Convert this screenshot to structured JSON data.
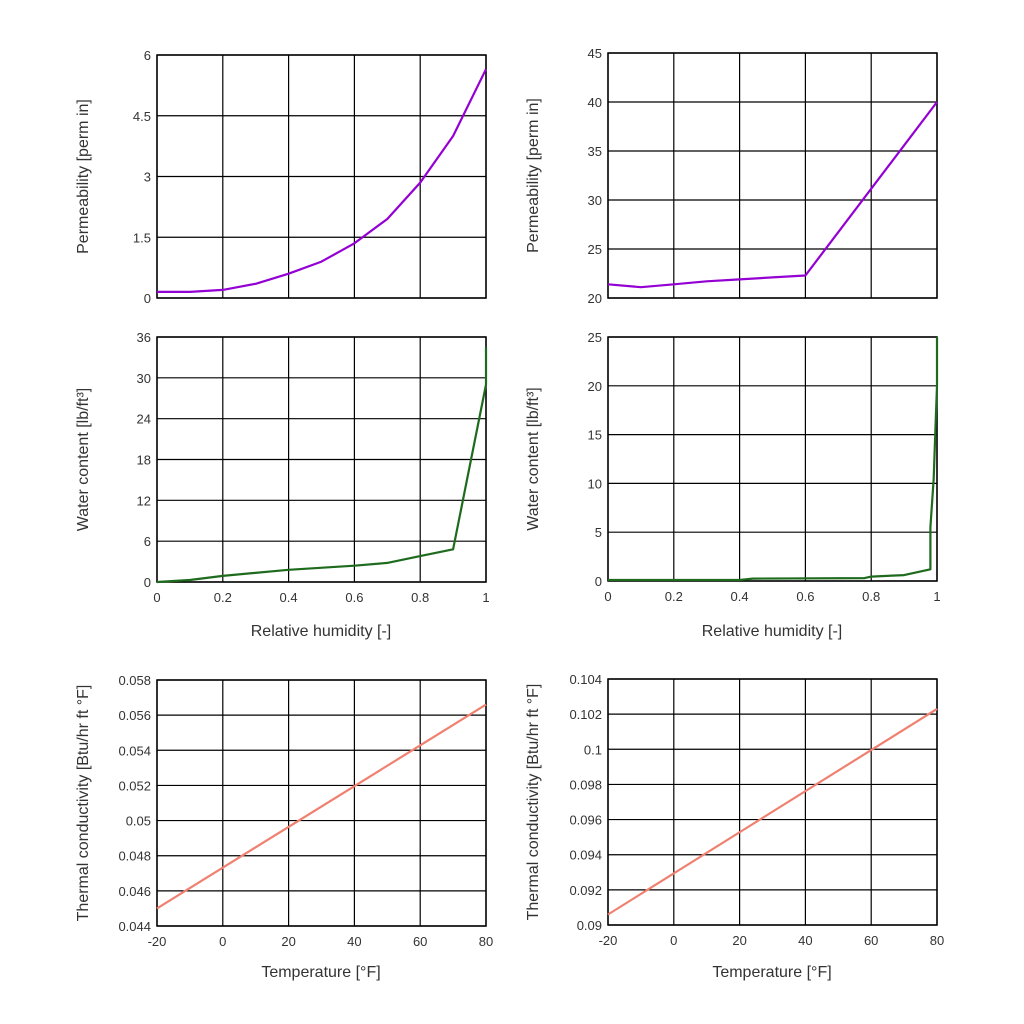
{
  "chart_data": [
    {
      "type": "line",
      "ylabel": "Permeability [perm in]",
      "xlabel": "",
      "xlim": [
        0,
        1
      ],
      "ylim": [
        0,
        6
      ],
      "xticks": [
        0,
        0.2,
        0.4,
        0.6,
        0.8,
        1
      ],
      "show_xtick_labels": false,
      "yticks": [
        0,
        1.5,
        3,
        4.5,
        6
      ],
      "grid": true,
      "color": "#9400D3",
      "x": [
        0,
        0.1,
        0.2,
        0.3,
        0.4,
        0.5,
        0.6,
        0.7,
        0.8,
        0.9,
        1.0
      ],
      "y": [
        0.15,
        0.15,
        0.2,
        0.35,
        0.6,
        0.9,
        1.35,
        1.95,
        2.85,
        4.0,
        5.65
      ]
    },
    {
      "type": "line",
      "ylabel": "Permeability [perm in]",
      "xlabel": "",
      "xlim": [
        0,
        1
      ],
      "ylim": [
        20,
        45
      ],
      "xticks": [
        0,
        0.2,
        0.4,
        0.6,
        0.8,
        1
      ],
      "show_xtick_labels": false,
      "yticks": [
        20,
        25,
        30,
        35,
        40,
        45
      ],
      "grid": true,
      "color": "#9400D3",
      "x": [
        0,
        0.1,
        0.2,
        0.3,
        0.4,
        0.5,
        0.6,
        1.0
      ],
      "y": [
        21.4,
        21.1,
        21.4,
        21.7,
        21.9,
        22.1,
        22.3,
        40
      ]
    },
    {
      "type": "line",
      "ylabel": "Water content [lb/ft³]",
      "xlabel": "Relative humidity [-]",
      "xlim": [
        0,
        1
      ],
      "ylim": [
        0,
        36
      ],
      "xticks": [
        0,
        0.2,
        0.4,
        0.6,
        0.8,
        1
      ],
      "show_xtick_labels": true,
      "yticks": [
        0,
        6,
        12,
        18,
        24,
        30,
        36
      ],
      "grid": true,
      "color": "#1E6B1E",
      "x": [
        0,
        0.1,
        0.2,
        0.4,
        0.6,
        0.7,
        0.8,
        0.9,
        1.0,
        1.0
      ],
      "y": [
        0,
        0.3,
        0.9,
        1.8,
        2.4,
        2.8,
        3.8,
        4.8,
        29,
        34.5
      ]
    },
    {
      "type": "line",
      "ylabel": "Water content [lb/ft³]",
      "xlabel": "Relative humidity [-]",
      "xlim": [
        0,
        1
      ],
      "ylim": [
        0,
        25
      ],
      "xticks": [
        0,
        0.2,
        0.4,
        0.6,
        0.8,
        1
      ],
      "show_xtick_labels": true,
      "yticks": [
        0,
        5,
        10,
        15,
        20,
        25
      ],
      "grid": true,
      "color": "#1E6B1E",
      "x": [
        0,
        0.4,
        0.44,
        0.78,
        0.8,
        0.9,
        0.98,
        0.98,
        0.99,
        0.995,
        1.0,
        1.0
      ],
      "y": [
        0.1,
        0.1,
        0.25,
        0.3,
        0.45,
        0.6,
        1.2,
        5.5,
        10.5,
        15.5,
        20,
        25
      ]
    },
    {
      "type": "line",
      "ylabel": "Thermal conductivity [Btu/hr ft °F]",
      "xlabel": "Temperature [°F]",
      "xlim": [
        -20,
        80
      ],
      "ylim": [
        0.044,
        0.058
      ],
      "xticks": [
        -20,
        0,
        20,
        40,
        60,
        80
      ],
      "show_xtick_labels": true,
      "yticks": [
        0.044,
        0.046,
        0.048,
        0.05,
        0.052,
        0.054,
        0.056,
        0.058
      ],
      "grid": true,
      "color": "#F08070",
      "x": [
        -20,
        80
      ],
      "y": [
        0.045,
        0.0566
      ]
    },
    {
      "type": "line",
      "ylabel": "Thermal conductivity [Btu/hr ft °F]",
      "xlabel": "Temperature [°F]",
      "xlim": [
        -20,
        80
      ],
      "ylim": [
        0.09,
        0.104
      ],
      "xticks": [
        -20,
        0,
        20,
        40,
        60,
        80
      ],
      "show_xtick_labels": true,
      "yticks": [
        0.09,
        0.092,
        0.094,
        0.096,
        0.098,
        0.1,
        0.102,
        0.104
      ],
      "grid": true,
      "color": "#F08070",
      "x": [
        -20,
        80
      ],
      "y": [
        0.0906,
        0.1023
      ]
    }
  ]
}
